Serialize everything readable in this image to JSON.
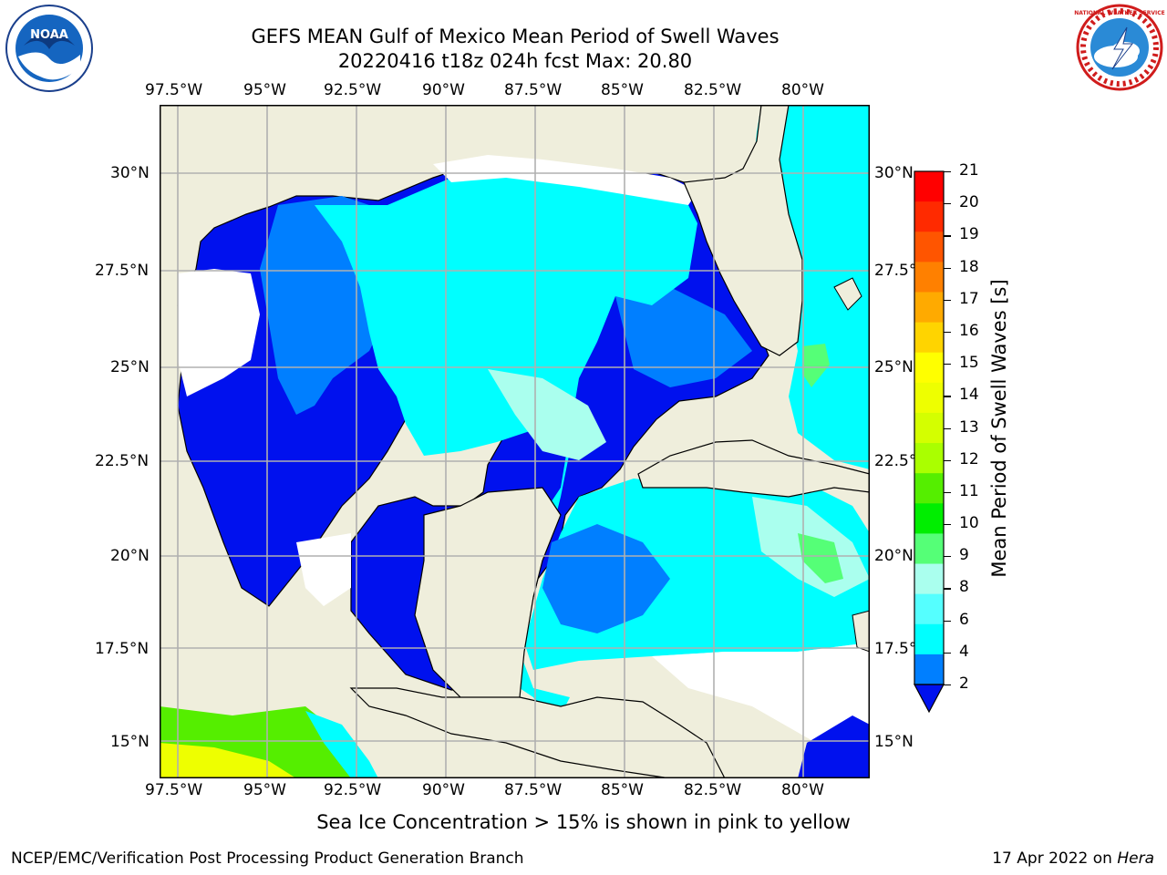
{
  "title": {
    "line1": "GEFS MEAN Gulf of Mexico Mean Period of Swell Waves",
    "line2": "20220416 t18z 024h fcst   Max: 20.80"
  },
  "map": {
    "lon_labels": [
      "97.5°W",
      "95°W",
      "92.5°W",
      "90°W",
      "87.5°W",
      "85°W",
      "82.5°W",
      "80°W"
    ],
    "lat_labels": [
      "30°N",
      "27.5°N",
      "25°N",
      "22.5°N",
      "20°N",
      "17.5°N",
      "15°N"
    ],
    "lat_labels_right": [
      "30°N",
      "27.5°N",
      "25°N",
      "22.5°N",
      "20°N",
      "17.5°N",
      "15°N"
    ],
    "colors": {
      "land": "#efeedc",
      "ocean_low": "#0011ee",
      "ocean_mid": "#007fff",
      "ocean_high": "#00ffff",
      "grid": "#b0b0b0"
    }
  },
  "colorbar": {
    "title": "Mean Period of Swell Waves [s]",
    "ticks": [
      "21",
      "20",
      "19",
      "18",
      "17",
      "16",
      "15",
      "14",
      "13",
      "12",
      "11",
      "10",
      "9",
      "8",
      "6",
      "4",
      "2"
    ],
    "colors": [
      "#ff0000",
      "#ff2a00",
      "#ff5500",
      "#ff8000",
      "#ffaa00",
      "#ffd400",
      "#ffff00",
      "#eeff00",
      "#d4ff00",
      "#aaff00",
      "#55ee00",
      "#00ee00",
      "#55ff77",
      "#aaffee",
      "#55ffff",
      "#00ffff",
      "#007fff"
    ],
    "extend_color": "#0011ee"
  },
  "caption": "Sea Ice Concentration > 15% is shown in pink to yellow",
  "footer": {
    "left": "NCEP/EMC/Verification Post Processing Product Generation Branch",
    "right_date": "17 Apr 2022 on ",
    "right_host": "Hera"
  },
  "logos": {
    "left": "NOAA",
    "right": "NATIONAL WEATHER SERVICE"
  }
}
